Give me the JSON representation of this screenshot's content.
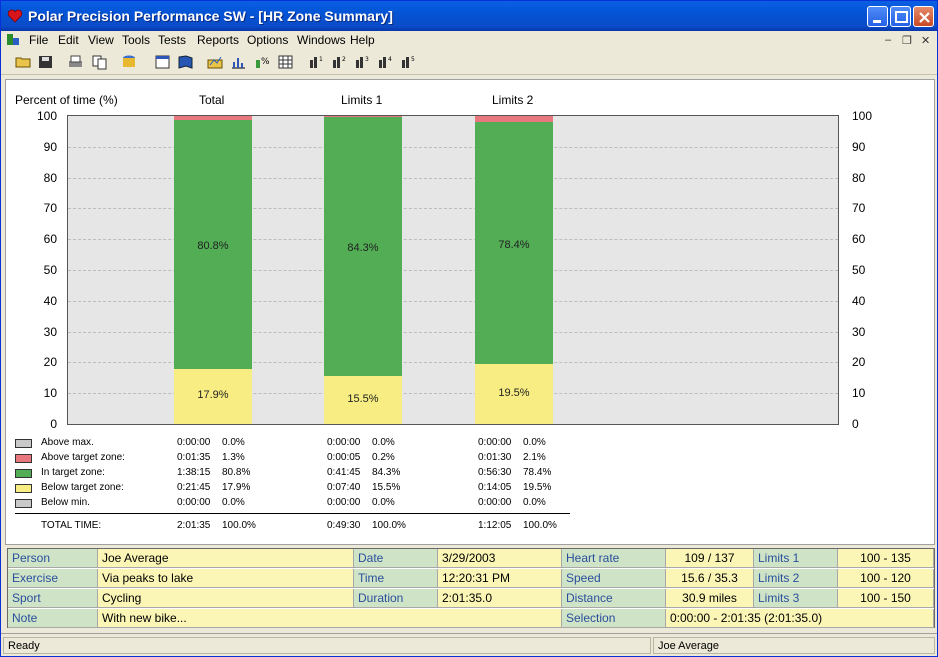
{
  "window": {
    "title": "Polar Precision Performance SW - [HR Zone Summary]"
  },
  "menu": [
    "File",
    "Edit",
    "View",
    "Tools",
    "Tests",
    "Reports",
    "Options",
    "Windows",
    "Help"
  ],
  "toolbar": {
    "icons": [
      "open-folder-icon",
      "save-icon",
      "print-icon",
      "copy-icon",
      "database-icon",
      "calendar-icon",
      "book-icon",
      "folder-chart-icon",
      "bar-chart-icon",
      "percent-chart-icon",
      "table-icon",
      "chart-1-icon",
      "chart-2-icon",
      "chart-3-icon",
      "chart-4-icon",
      "chart-5-icon"
    ]
  },
  "chart_data": {
    "type": "bar",
    "stacked": true,
    "ylabel": "Percent of time (%)",
    "ylim": [
      0,
      100
    ],
    "yticks": [
      0,
      10,
      20,
      30,
      40,
      50,
      60,
      70,
      80,
      90,
      100
    ],
    "grid": true,
    "categories": [
      "Total",
      "Limits 1",
      "Limits 2"
    ],
    "series": [
      {
        "name": "Below min.",
        "color": "#c9c9c9",
        "values": [
          0.0,
          0.0,
          0.0
        ]
      },
      {
        "name": "Below target zone:",
        "color": "#f7ed82",
        "values": [
          17.9,
          15.5,
          19.5
        ]
      },
      {
        "name": "In target zone:",
        "color": "#52ad55",
        "values": [
          80.8,
          84.3,
          78.4
        ]
      },
      {
        "name": "Above target zone:",
        "color": "#e8787e",
        "values": [
          1.3,
          0.2,
          2.1
        ]
      },
      {
        "name": "Above max.",
        "color": "#c9c9c9",
        "values": [
          0.0,
          0.0,
          0.0
        ]
      }
    ],
    "bar_labels": [
      {
        "in_zone": "80.8%",
        "below": "17.9%"
      },
      {
        "in_zone": "84.3%",
        "below": "15.5%"
      },
      {
        "in_zone": "78.4%",
        "below": "19.5%"
      }
    ]
  },
  "legend_table": {
    "rows": [
      {
        "label": "Above max.",
        "color": "#c9c9c9",
        "cols": [
          [
            "0:00:00",
            "0.0%"
          ],
          [
            "0:00:00",
            "0.0%"
          ],
          [
            "0:00:00",
            "0.0%"
          ]
        ]
      },
      {
        "label": "Above target zone:",
        "color": "#e8787e",
        "cols": [
          [
            "0:01:35",
            "1.3%"
          ],
          [
            "0:00:05",
            "0.2%"
          ],
          [
            "0:01:30",
            "2.1%"
          ]
        ]
      },
      {
        "label": "In target zone:",
        "color": "#52ad55",
        "cols": [
          [
            "1:38:15",
            "80.8%"
          ],
          [
            "0:41:45",
            "84.3%"
          ],
          [
            "0:56:30",
            "78.4%"
          ]
        ]
      },
      {
        "label": "Below target zone:",
        "color": "#f7ed82",
        "cols": [
          [
            "0:21:45",
            "17.9%"
          ],
          [
            "0:07:40",
            "15.5%"
          ],
          [
            "0:14:05",
            "19.5%"
          ]
        ]
      },
      {
        "label": "Below min.",
        "color": "#c9c9c9",
        "cols": [
          [
            "0:00:00",
            "0.0%"
          ],
          [
            "0:00:00",
            "0.0%"
          ],
          [
            "0:00:00",
            "0.0%"
          ]
        ]
      }
    ],
    "total": {
      "label": "TOTAL TIME:",
      "cols": [
        [
          "2:01:35",
          "100.0%"
        ],
        [
          "0:49:30",
          "100.0%"
        ],
        [
          "1:12:05",
          "100.0%"
        ]
      ]
    }
  },
  "info": {
    "person_label": "Person",
    "person": "Joe Average",
    "exercise_label": "Exercise",
    "exercise": "Via peaks to lake",
    "sport_label": "Sport",
    "sport": "Cycling",
    "note_label": "Note",
    "note": "With new bike...",
    "date_label": "Date",
    "date": "3/29/2003",
    "time_label": "Time",
    "time": "12:20:31 PM",
    "duration_label": "Duration",
    "duration": "2:01:35.0",
    "hr_label": "Heart rate",
    "hr": "109 / 137",
    "speed_label": "Speed",
    "speed": "15.6 / 35.3",
    "distance_label": "Distance",
    "distance": "30.9 miles",
    "selection_label": "Selection",
    "selection": "0:00:00 - 2:01:35 (2:01:35.0)",
    "limits1_label": "Limits 1",
    "limits1": "100 - 135",
    "limits2_label": "Limits 2",
    "limits2": "100 - 120",
    "limits3_label": "Limits 3",
    "limits3": "100 - 150"
  },
  "status": {
    "left": "Ready",
    "right": "Joe Average"
  }
}
